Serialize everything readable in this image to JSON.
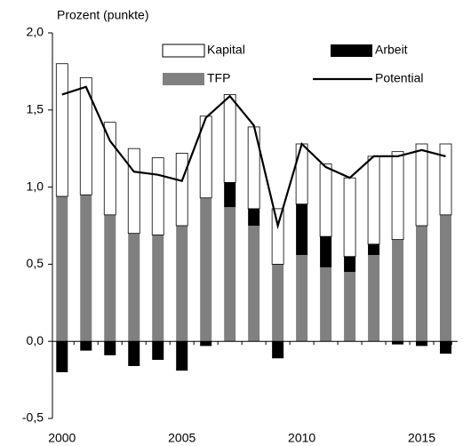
{
  "chart_data": {
    "type": "stacked-bar-line",
    "y_label": "Prozent (punkte)",
    "x": [
      2000,
      2001,
      2002,
      2003,
      2004,
      2005,
      2006,
      2007,
      2008,
      2009,
      2010,
      2011,
      2012,
      2013,
      2014,
      2015,
      2016
    ],
    "xlim": [
      1999.6,
      2016.5
    ],
    "xticks": [
      2000,
      2005,
      2010,
      2015
    ],
    "ylim": [
      -0.5,
      2.0
    ],
    "yticks": [
      {
        "value": -0.5,
        "label": "-0,5"
      },
      {
        "value": 0,
        "label": "0,0"
      },
      {
        "value": 0.5,
        "label": "0,5"
      },
      {
        "value": 1.0,
        "label": "1,0"
      },
      {
        "value": 1.5,
        "label": "1,5"
      },
      {
        "value": 2.0,
        "label": "2,0"
      }
    ],
    "series": [
      {
        "name": "Kapital",
        "kind": "bar",
        "color": "#ffffff",
        "values": [
          0.86,
          0.76,
          0.6,
          0.55,
          0.5,
          0.47,
          0.53,
          0.57,
          0.53,
          0.36,
          0.39,
          0.47,
          0.51,
          0.57,
          0.57,
          0.53,
          0.46
        ]
      },
      {
        "name": "Arbeit",
        "kind": "bar",
        "color": "#000000",
        "values": [
          -0.2,
          -0.06,
          -0.09,
          -0.16,
          -0.12,
          -0.19,
          -0.03,
          0.16,
          0.11,
          -0.11,
          0.33,
          0.2,
          0.1,
          0.07,
          -0.02,
          -0.03,
          -0.08
        ]
      },
      {
        "name": "TFP",
        "kind": "bar",
        "color": "#808080",
        "values": [
          0.94,
          0.95,
          0.82,
          0.7,
          0.69,
          0.75,
          0.93,
          0.87,
          0.75,
          0.5,
          0.56,
          0.48,
          0.45,
          0.56,
          0.66,
          0.75,
          0.82
        ]
      },
      {
        "name": "Potential",
        "kind": "line",
        "color": "#000000",
        "values": [
          1.6,
          1.65,
          1.3,
          1.1,
          1.08,
          1.04,
          1.45,
          1.59,
          1.4,
          0.75,
          1.28,
          1.13,
          1.06,
          1.2,
          1.2,
          1.24,
          1.2
        ]
      }
    ]
  }
}
